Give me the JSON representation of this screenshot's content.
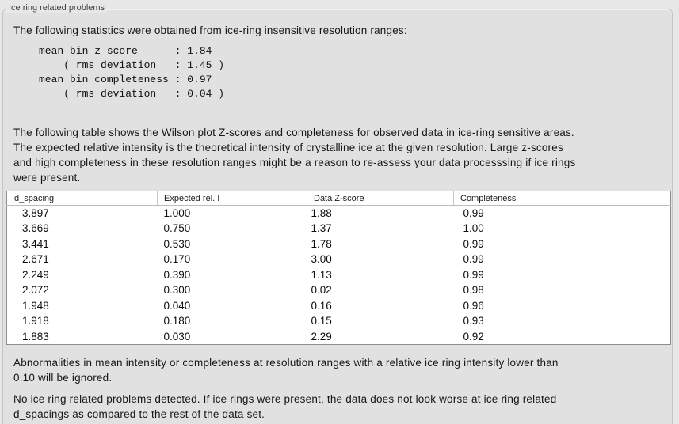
{
  "panel": {
    "title": "Ice ring related problems"
  },
  "intro": {
    "text": "The following statistics were obtained from ice-ring insensitive resolution ranges:"
  },
  "stats": {
    "lines": [
      "mean bin z_score      : 1.84",
      "    ( rms deviation   : 1.45 )",
      "mean bin completeness : 0.97",
      "    ( rms deviation   : 0.04 )"
    ]
  },
  "description": {
    "lines": [
      "The following table shows the Wilson plot Z-scores and completeness for observed data in ice-ring sensitive areas.",
      "The expected relative intensity is the theoretical intensity of crystalline ice at the given resolution. Large z-scores",
      "and high completeness in these resolution ranges might be a reason to re-assess your data processsing if ice rings",
      "were present."
    ]
  },
  "table": {
    "columns": [
      "d_spacing",
      "Expected rel. I",
      "Data Z-score",
      "Completeness",
      ""
    ],
    "rows": [
      [
        "3.897",
        "1.000",
        "1.88",
        "0.99"
      ],
      [
        "3.669",
        "0.750",
        "1.37",
        "1.00"
      ],
      [
        "3.441",
        "0.530",
        "1.78",
        "0.99"
      ],
      [
        "2.671",
        "0.170",
        "3.00",
        "0.99"
      ],
      [
        "2.249",
        "0.390",
        "1.13",
        "0.99"
      ],
      [
        "2.072",
        "0.300",
        "0.02",
        "0.98"
      ],
      [
        "1.948",
        "0.040",
        "0.16",
        "0.96"
      ],
      [
        "1.918",
        "0.180",
        "0.15",
        "0.93"
      ],
      [
        "1.883",
        "0.030",
        "2.29",
        "0.92"
      ]
    ]
  },
  "notes": {
    "ignore_rule": [
      "Abnormalities in mean intensity or completeness at resolution ranges with a relative ice ring intensity lower than",
      "0.10 will be ignored."
    ],
    "conclusion": [
      "No ice ring related problems detected. If ice rings were present, the data does not look worse at ice ring related",
      "d_spacings as compared to the rest of the data set."
    ]
  },
  "colors": {
    "page_bg": "#e7e7e7",
    "panel_bg": "#e1e1e1",
    "panel_border": "#c5c5c5",
    "table_bg": "#ffffff",
    "table_border": "#8e8e8e",
    "text": "#161616"
  }
}
